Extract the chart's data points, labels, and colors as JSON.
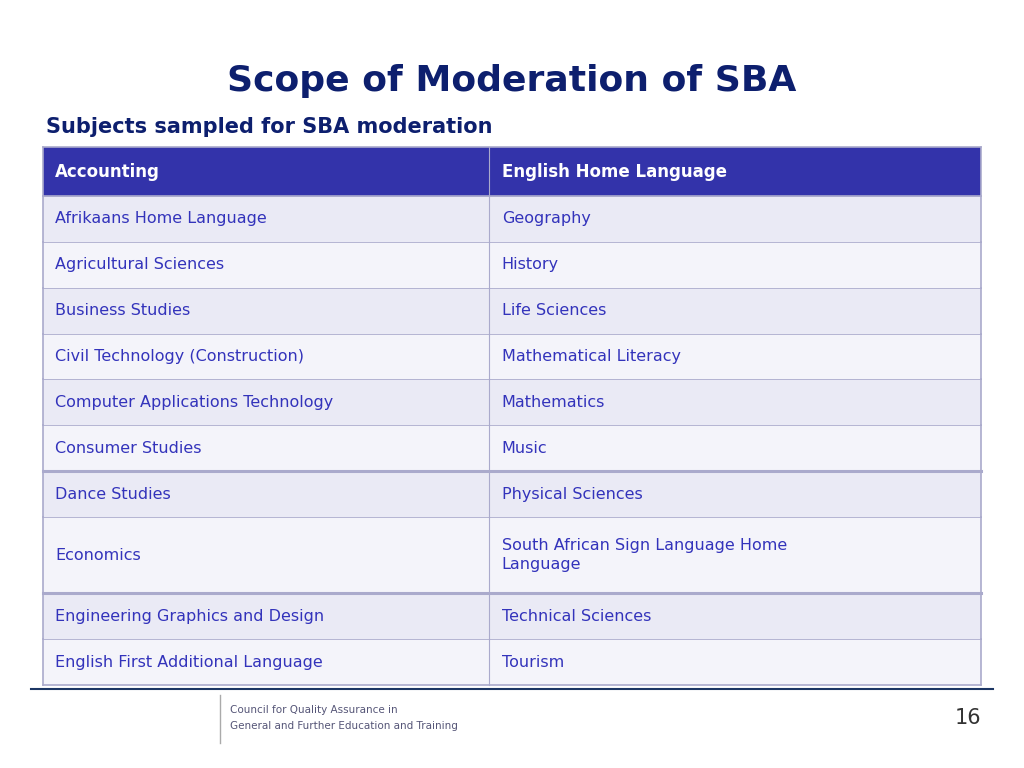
{
  "title": "Scope of Moderation of SBA",
  "subtitle": "Subjects sampled for SBA moderation",
  "title_color": "#0D1F6E",
  "subtitle_color": "#0D1F6E",
  "header_bg": "#3333AA",
  "header_text_color": "#FFFFFF",
  "row_colors": [
    "#EAEAF5",
    "#F4F4FA"
  ],
  "cell_text_color": "#3333BB",
  "table_border_color": "#AAAACC",
  "header": [
    "Accounting",
    "English Home Language"
  ],
  "rows": [
    [
      "Afrikaans Home Language",
      "Geography"
    ],
    [
      "Agricultural Sciences",
      "History"
    ],
    [
      "Business Studies",
      "Life Sciences"
    ],
    [
      "Civil Technology (Construction)",
      "Mathematical Literacy"
    ],
    [
      "Computer Applications Technology",
      "Mathematics"
    ],
    [
      "Consumer Studies",
      "Music"
    ],
    [
      "Dance Studies",
      "Physical Sciences"
    ],
    [
      "Economics",
      "South African Sign Language Home\nLanguage"
    ],
    [
      "Engineering Graphics and Design",
      "Technical Sciences"
    ],
    [
      "English First Additional Language",
      "Tourism"
    ]
  ],
  "thick_border_before": [
    6,
    8
  ],
  "top_bar_color": "#1C3664",
  "top_accent_color": "#8B6914",
  "bottom_bar_color": "#1C3664",
  "page_number": "16",
  "bg_color": "#FFFFFF",
  "footer_text1": "Council for Quality Assurance in",
  "footer_text2": "General and Further Education and Training",
  "umalusi_bg": "#1C3664",
  "col_split": 0.476
}
